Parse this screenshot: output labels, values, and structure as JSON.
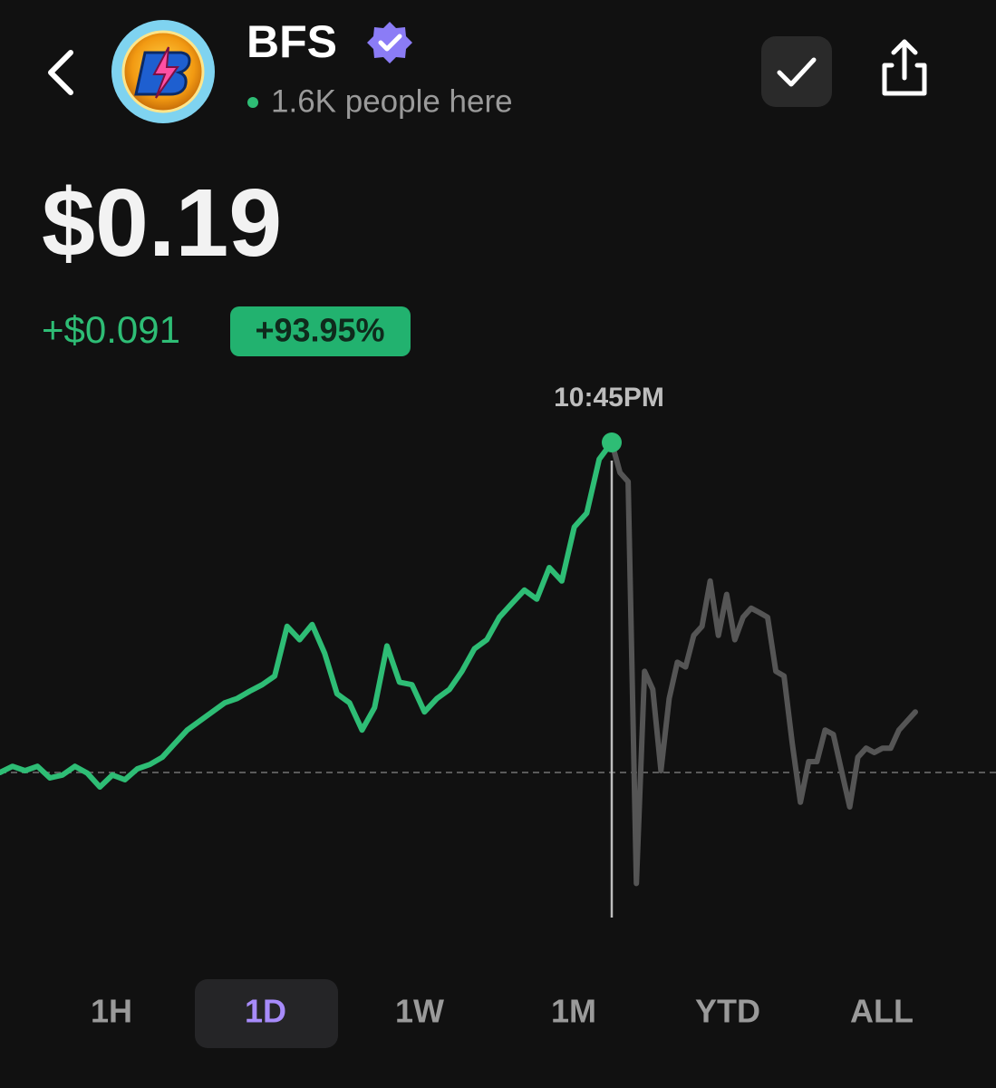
{
  "header": {
    "name": "BFS",
    "presence": "1.6K people here"
  },
  "price": "$0.19",
  "change": "+$0.091",
  "change_percent": "+93.95%",
  "tabs": [
    "1H",
    "1D",
    "1W",
    "1M",
    "YTD",
    "ALL"
  ],
  "selected_tab": "1D",
  "chart_data": {
    "type": "line",
    "hover_label": "10:45PM",
    "ylim": [
      0.057,
      0.207
    ],
    "reference_line": 0.099,
    "series": [
      {
        "color": "#2ebd75",
        "values": [
          0.099,
          0.1007,
          0.0995,
          0.1007,
          0.0975,
          0.0983,
          0.1007,
          0.0988,
          0.095,
          0.0983,
          0.097,
          0.1,
          0.1012,
          0.1032,
          0.107,
          0.1107,
          0.1132,
          0.1157,
          0.1182,
          0.1194,
          0.1214,
          0.1232,
          0.1256,
          0.1393,
          0.1356,
          0.1398,
          0.1319,
          0.1207,
          0.1182,
          0.1107,
          0.1169,
          0.1339,
          0.1239,
          0.1232,
          0.1157,
          0.1194,
          0.1219,
          0.1269,
          0.1331,
          0.1356,
          0.1418,
          0.1456,
          0.1493,
          0.1468,
          0.1555,
          0.1518,
          0.1667,
          0.1705,
          0.1854,
          0.19
        ]
      },
      {
        "color": "#555555",
        "values": [
          0.19,
          0.1817,
          0.1792,
          0.0684,
          0.1269,
          0.1219,
          0.0995,
          0.1194,
          0.1294,
          0.1281,
          0.1368,
          0.1393,
          0.1518,
          0.1368,
          0.1481,
          0.1356,
          0.1418,
          0.1443,
          0.1431,
          0.1418,
          0.1269,
          0.1256,
          0.107,
          0.0908,
          0.102,
          0.102,
          0.1107,
          0.1095,
          0.0995,
          0.0895,
          0.1032,
          0.1057,
          0.1045,
          0.1057,
          0.1057,
          0.1107,
          0.1132,
          0.1157
        ]
      }
    ]
  }
}
